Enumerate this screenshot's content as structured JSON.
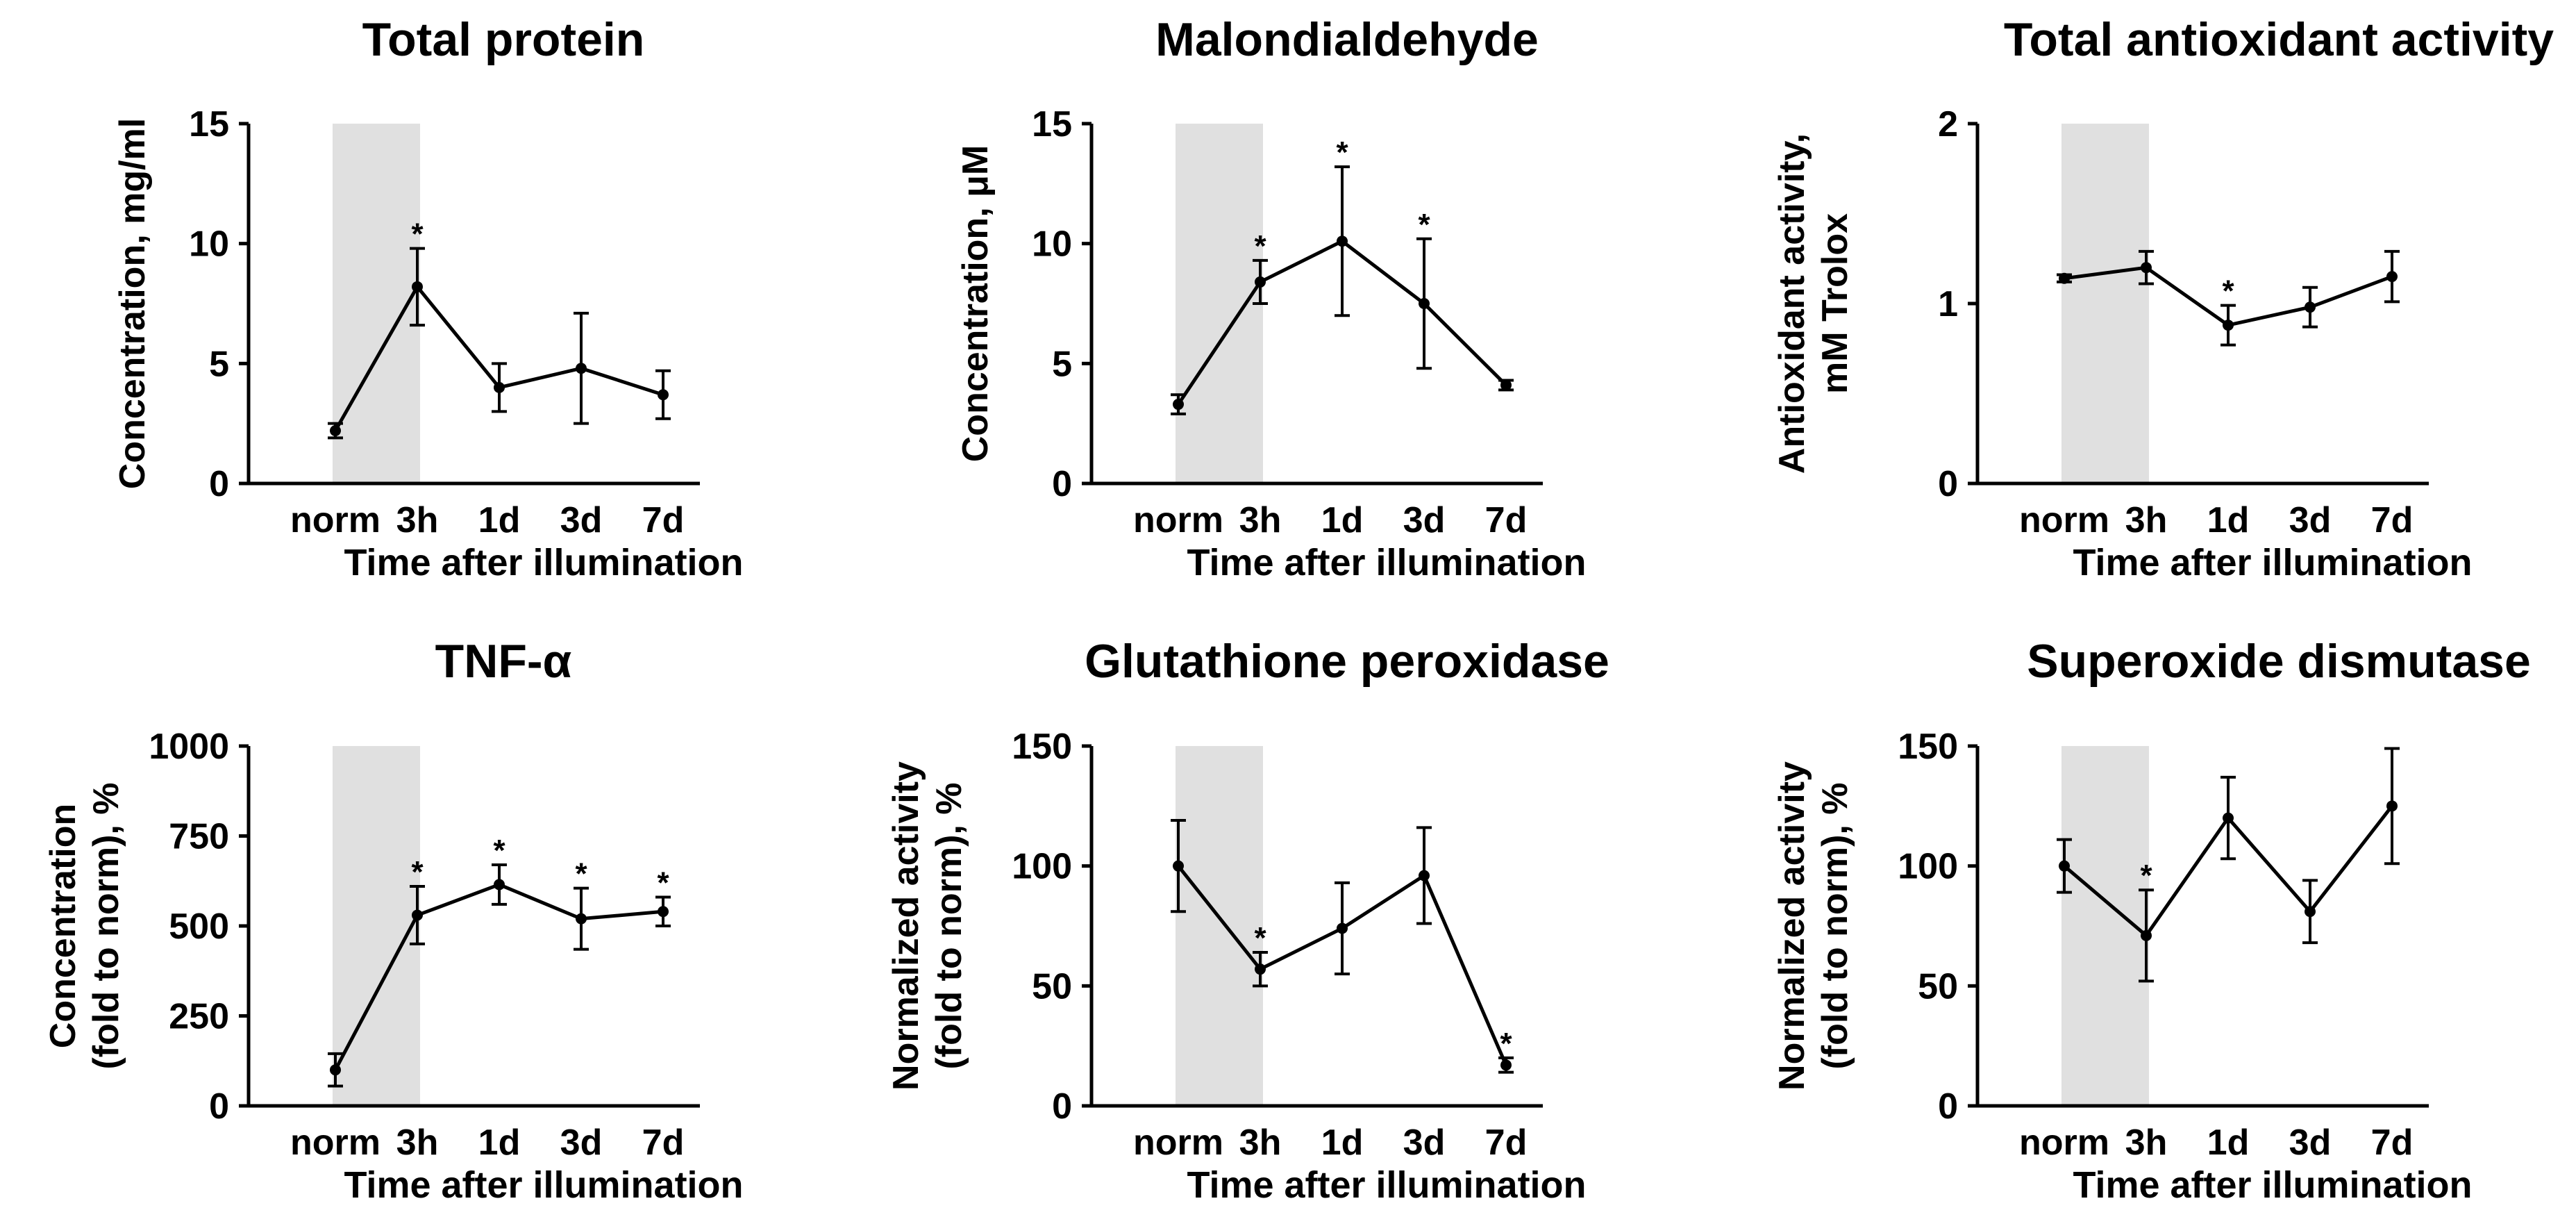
{
  "chart_data": [
    {
      "type": "line",
      "title": "Total protein",
      "xlabel": "Time after illumination",
      "ylabel": [
        "Concentration, mg/ml"
      ],
      "categories": [
        "norm",
        "3h",
        "1d",
        "3d",
        "7d"
      ],
      "values": [
        2.2,
        8.2,
        4.0,
        4.8,
        3.7
      ],
      "errors": [
        0.3,
        1.6,
        1.0,
        2.3,
        1.0
      ],
      "significant": [
        false,
        true,
        false,
        false,
        false
      ],
      "ylim": [
        0,
        15
      ],
      "yticks": [
        0,
        5,
        10,
        15
      ],
      "ytick_labels": [
        "0",
        "5",
        "10",
        "15"
      ],
      "shaded_categories": [
        "norm",
        "3h"
      ],
      "star_label": "*"
    },
    {
      "type": "line",
      "title": "Malondialdehyde",
      "xlabel": "Time after illumination",
      "ylabel": [
        "Concentration, μM"
      ],
      "categories": [
        "norm",
        "3h",
        "1d",
        "3d",
        "7d"
      ],
      "values": [
        3.3,
        8.4,
        10.1,
        7.5,
        4.1
      ],
      "errors": [
        0.4,
        0.9,
        3.1,
        2.7,
        0.2
      ],
      "significant": [
        false,
        true,
        true,
        true,
        false
      ],
      "ylim": [
        0,
        15
      ],
      "yticks": [
        0,
        5,
        10,
        15
      ],
      "ytick_labels": [
        "0",
        "5",
        "10",
        "15"
      ],
      "shaded_categories": [
        "norm",
        "3h"
      ],
      "star_label": "*"
    },
    {
      "type": "line",
      "title": "Total antioxidant activity",
      "xlabel": "Time after illumination",
      "ylabel": [
        "Antioxidant activity,",
        "mM Trolox"
      ],
      "categories": [
        "norm",
        "3h",
        "1d",
        "3d",
        "7d"
      ],
      "values": [
        1.14,
        1.2,
        0.88,
        0.98,
        1.15
      ],
      "errors": [
        0.02,
        0.09,
        0.11,
        0.11,
        0.14
      ],
      "significant": [
        false,
        false,
        true,
        false,
        false
      ],
      "ylim": [
        0,
        2
      ],
      "yticks": [
        0,
        1,
        2
      ],
      "ytick_labels": [
        "0",
        "1",
        "2"
      ],
      "shaded_categories": [
        "norm",
        "3h"
      ],
      "star_label": "*"
    },
    {
      "type": "line",
      "title": "TNF-α",
      "xlabel": "Time after illumination",
      "ylabel": [
        "Concentration",
        "(fold to norm), %"
      ],
      "categories": [
        "norm",
        "3h",
        "1d",
        "3d",
        "7d"
      ],
      "values": [
        100,
        530,
        615,
        520,
        540
      ],
      "errors": [
        45,
        80,
        55,
        85,
        40
      ],
      "significant": [
        false,
        true,
        true,
        true,
        true
      ],
      "ylim": [
        0,
        1000
      ],
      "yticks": [
        0,
        250,
        500,
        750,
        1000
      ],
      "ytick_labels": [
        "0",
        "250",
        "500",
        "750",
        "1000"
      ],
      "shaded_categories": [
        "norm",
        "3h"
      ],
      "star_label": "*"
    },
    {
      "type": "line",
      "title": "Glutathione peroxidase",
      "xlabel": "Time after illumination",
      "ylabel": [
        "Normalized activity",
        "(fold to norm), %"
      ],
      "categories": [
        "norm",
        "3h",
        "1d",
        "3d",
        "7d"
      ],
      "values": [
        100,
        57,
        74,
        96,
        17
      ],
      "errors": [
        19,
        7,
        19,
        20,
        3
      ],
      "significant": [
        false,
        true,
        false,
        false,
        true
      ],
      "ylim": [
        0,
        150
      ],
      "yticks": [
        0,
        50,
        100,
        150
      ],
      "ytick_labels": [
        "0",
        "50",
        "100",
        "150"
      ],
      "shaded_categories": [
        "norm",
        "3h"
      ],
      "star_label": "*"
    },
    {
      "type": "line",
      "title": "Superoxide dismutase",
      "xlabel": "Time after illumination",
      "ylabel": [
        "Normalized activity",
        "(fold to norm), %"
      ],
      "categories": [
        "norm",
        "3h",
        "1d",
        "3d",
        "7d"
      ],
      "values": [
        100,
        71,
        120,
        81,
        125
      ],
      "errors": [
        11,
        19,
        17,
        13,
        24
      ],
      "significant": [
        false,
        true,
        false,
        false,
        false
      ],
      "ylim": [
        0,
        150
      ],
      "yticks": [
        0,
        50,
        100,
        150
      ],
      "ytick_labels": [
        "0",
        "50",
        "100",
        "150"
      ],
      "shaded_categories": [
        "norm",
        "3h"
      ],
      "star_label": "*"
    }
  ],
  "colors": {
    "line": "#000000",
    "shade": "#e0e0e0"
  }
}
